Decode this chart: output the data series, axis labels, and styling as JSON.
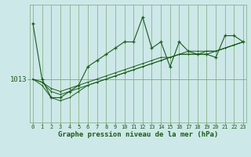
{
  "bg_color": "#cde8e8",
  "plot_bg_color": "#cde8e8",
  "grid_color": "#7aaa7a",
  "line_color": "#1a5c1a",
  "xlabel": "Graphe pression niveau de la mer (hPa)",
  "ylabel_tick": "1013",
  "ytick_val": 1013,
  "ylim": [
    1006,
    1025
  ],
  "series_main": [
    1022,
    1013,
    1010,
    1010,
    1011,
    1012,
    1015,
    1016,
    1017,
    1018,
    1019,
    1019,
    1023,
    1018,
    1019,
    1015,
    1019,
    1017.5,
    1017,
    1017,
    1016.5,
    1020,
    1020,
    1019
  ],
  "series_trend": [
    [
      1013,
      1012,
      1010,
      1009.5,
      1010,
      1011,
      1012,
      1012.5,
      1013,
      1013.5,
      1014,
      1014.5,
      1015,
      1015.5,
      1016,
      1016.5,
      1017,
      1017,
      1017,
      1017,
      1017.5,
      1018,
      1018.5,
      1019
    ],
    [
      1013,
      1012.5,
      1011,
      1010.5,
      1011,
      1011.5,
      1012,
      1012.5,
      1013,
      1013.5,
      1014,
      1014.5,
      1015,
      1015.5,
      1016,
      1016.5,
      1017,
      1017,
      1017,
      1017.5,
      1017.5,
      1018,
      1018.5,
      1019
    ],
    [
      1013,
      1012.5,
      1011.5,
      1011,
      1011.5,
      1012,
      1012.5,
      1013,
      1013.5,
      1014,
      1014.5,
      1015,
      1015.5,
      1016,
      1016.5,
      1016.5,
      1017,
      1017.5,
      1017.5,
      1017.5,
      1017.5,
      1018,
      1018.5,
      1019
    ]
  ],
  "xticks": [
    0,
    1,
    2,
    3,
    4,
    5,
    6,
    7,
    8,
    9,
    10,
    11,
    12,
    13,
    14,
    15,
    16,
    17,
    18,
    19,
    20,
    21,
    22,
    23
  ],
  "xlabel_fontsize": 6.5,
  "ytick_fontsize": 6.5,
  "xtick_fontsize": 5.0
}
